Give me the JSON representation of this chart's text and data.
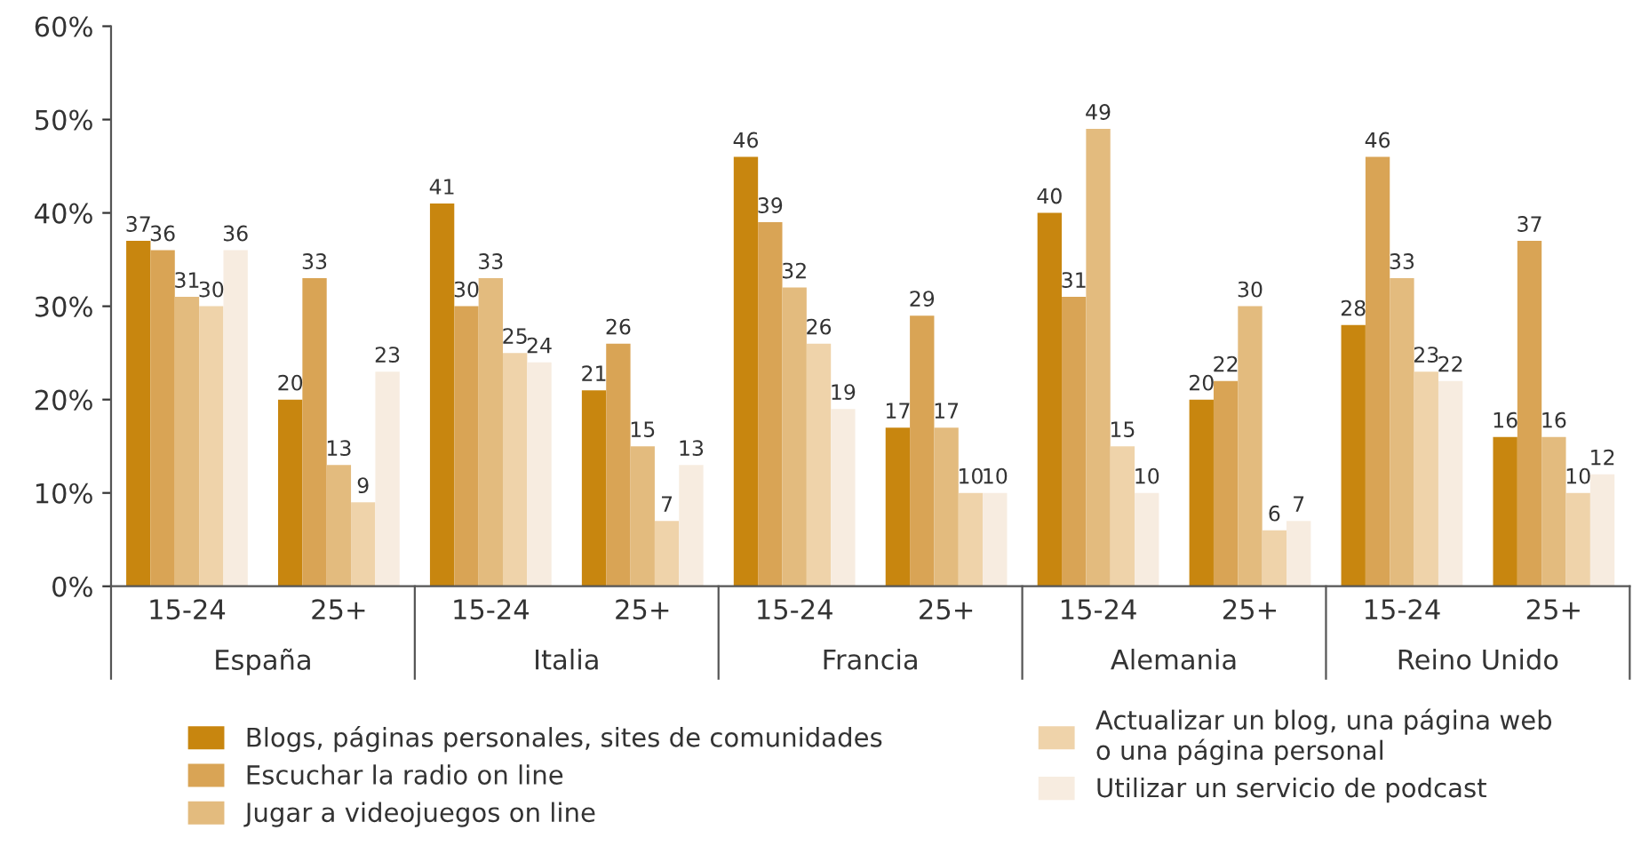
{
  "chart_data": {
    "type": "bar",
    "categories": [
      "15-24",
      "25+",
      "15-24",
      "25+",
      "15-24",
      "25+",
      "15-24",
      "25+",
      "15-24",
      "25+"
    ],
    "annotations": [
      "España",
      "Italia",
      "Francia",
      "Alemania",
      "Reino Unido"
    ],
    "series": [
      {
        "name": "Blogs, páginas personales, sites de comunidades",
        "color": "#c8860f",
        "values": [
          37,
          20,
          41,
          21,
          46,
          17,
          40,
          20,
          28,
          16
        ]
      },
      {
        "name": "Escuchar la radio on line",
        "color": "#d9a455",
        "values": [
          36,
          33,
          30,
          26,
          39,
          29,
          31,
          22,
          46,
          37
        ]
      },
      {
        "name": "Jugar a videojuegos on line",
        "color": "#e3bb7e",
        "values": [
          31,
          13,
          33,
          15,
          32,
          17,
          49,
          30,
          33,
          16
        ]
      },
      {
        "name": "Actualizar un blog, una página web\no una página personal",
        "color": "#efd3aa",
        "values": [
          30,
          9,
          25,
          7,
          26,
          10,
          15,
          6,
          23,
          10
        ]
      },
      {
        "name": "Utilizar un servicio de podcast",
        "color": "#f7ece0",
        "values": [
          36,
          23,
          24,
          13,
          19,
          10,
          10,
          7,
          22,
          12
        ]
      }
    ],
    "ylim": [
      0,
      60
    ],
    "yticks": [
      {
        "value": 0,
        "label": "0%"
      },
      {
        "value": 10,
        "label": "10%"
      },
      {
        "value": 20,
        "label": "20%"
      },
      {
        "value": 30,
        "label": "30%"
      },
      {
        "value": 40,
        "label": "40%"
      },
      {
        "value": 50,
        "label": "50%"
      },
      {
        "value": 60,
        "label": "60%"
      }
    ],
    "data_labels": true,
    "grid": false,
    "legend": "bottom"
  }
}
